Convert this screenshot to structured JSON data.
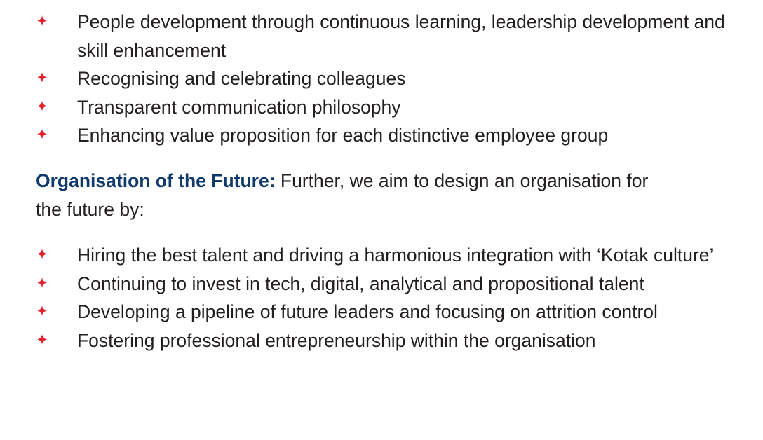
{
  "list_1": {
    "bullet_icon": "four-point-star-icon",
    "bullet_color": "#e31e2d",
    "items": [
      {
        "text": "People development through continuous learning, leadership development and skill enhancement"
      },
      {
        "text": "Recognising and celebrating colleagues"
      },
      {
        "text": "Transparent communication philosophy"
      },
      {
        "text": "Enhancing value proposition for each distinctive employee group"
      }
    ]
  },
  "paragraph": {
    "lead": "Organisation of the Future:",
    "lead_color": "#0f3a6b",
    "text": " Further, we aim to design an organisation for the future by:"
  },
  "list_2": {
    "bullet_icon": "four-point-star-icon",
    "bullet_color": "#e31e2d",
    "items": [
      {
        "text": "Hiring the best talent and driving a harmonious integration with ‘Kotak culture’"
      },
      {
        "text": "Continuing to invest in tech, digital, analytical and propositional talent"
      },
      {
        "text": "Developing a pipeline of future leaders and focusing on attrition control"
      },
      {
        "text": "Fostering professional entrepreneurship within the organisation"
      }
    ]
  }
}
